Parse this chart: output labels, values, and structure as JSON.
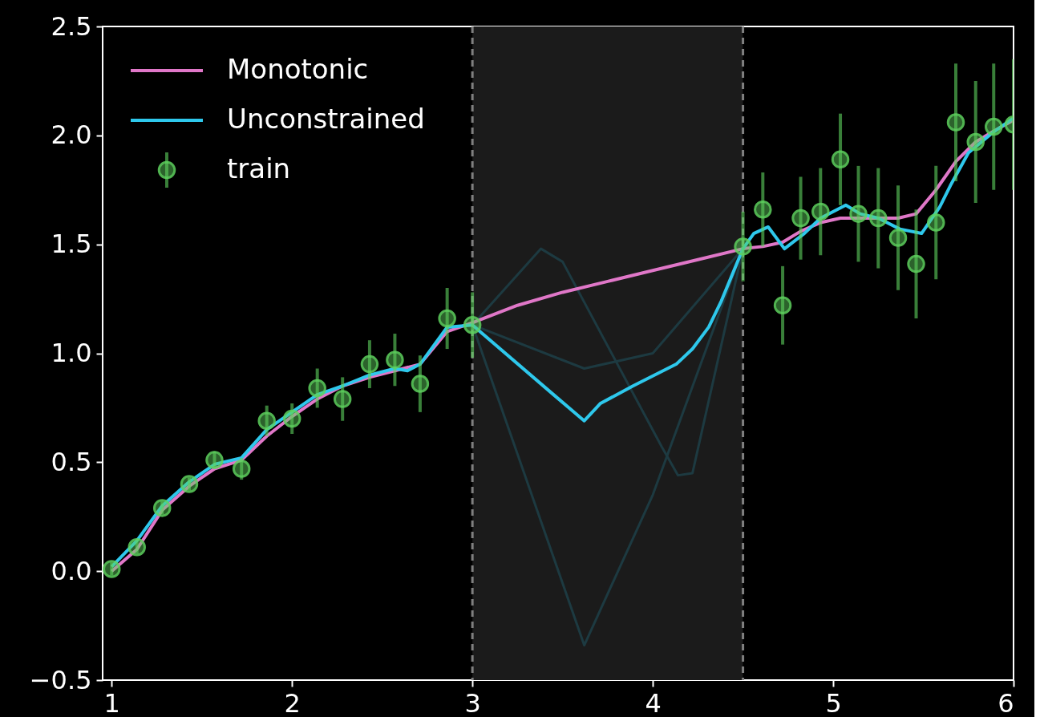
{
  "chart_data": {
    "type": "line",
    "xlim": [
      0.95,
      6.0
    ],
    "ylim": [
      -0.5,
      2.5
    ],
    "xticks": [
      1,
      2,
      3,
      4,
      5,
      6
    ],
    "yticks": [
      {
        "value": -0.5,
        "label": "−0.5"
      },
      {
        "value": 0,
        "label": "0.0"
      },
      {
        "value": 0.5,
        "label": "0.5"
      },
      {
        "value": 1,
        "label": "1.0"
      },
      {
        "value": 1.5,
        "label": "1.5"
      },
      {
        "value": 2,
        "label": "2.0"
      },
      {
        "value": 2.5,
        "label": "2.5"
      }
    ],
    "grid": false,
    "legend": "top left",
    "line_style": "solid",
    "bands": [
      {
        "axis": "x",
        "from": 3,
        "to": 4.5,
        "color": "#1b1b1b"
      }
    ],
    "ref_lines": [
      {
        "axis": "x",
        "value": 3,
        "color": "#808080",
        "line_style": "dashed"
      },
      {
        "axis": "x",
        "value": 4.5,
        "color": "#808080",
        "line_style": "dashed"
      }
    ],
    "series": [
      {
        "type": "line",
        "color": "#1d3a41",
        "x": [
          3.0,
          3.62,
          4.0,
          4.5
        ],
        "values": [
          1.13,
          -0.34,
          0.35,
          1.48
        ]
      },
      {
        "type": "line",
        "color": "#1d3a41",
        "x": [
          3.0,
          3.38,
          3.5,
          4.05,
          4.14,
          4.22,
          4.5
        ],
        "values": [
          1.13,
          1.48,
          1.42,
          0.57,
          0.44,
          0.45,
          1.48
        ]
      },
      {
        "type": "line",
        "color": "#1d3a41",
        "x": [
          3.0,
          3.62,
          4.0,
          4.5
        ],
        "values": [
          1.13,
          0.93,
          1.0,
          1.48
        ]
      },
      {
        "name": "Monotonic",
        "type": "line",
        "color": "#e077c8",
        "x": [
          1.0,
          1.14,
          1.28,
          1.43,
          1.57,
          1.72,
          1.86,
          2.0,
          2.14,
          2.28,
          2.43,
          2.57,
          2.71,
          2.86,
          3.0,
          3.25,
          3.5,
          3.75,
          4.0,
          4.25,
          4.5,
          4.61,
          4.72,
          4.82,
          4.93,
          5.04,
          5.14,
          5.25,
          5.36,
          5.46,
          5.57,
          5.68,
          5.79,
          5.89,
          6.0
        ],
        "values": [
          0.0,
          0.1,
          0.28,
          0.39,
          0.47,
          0.51,
          0.62,
          0.71,
          0.79,
          0.85,
          0.89,
          0.92,
          0.95,
          1.1,
          1.14,
          1.22,
          1.28,
          1.33,
          1.38,
          1.43,
          1.48,
          1.49,
          1.51,
          1.56,
          1.6,
          1.62,
          1.62,
          1.62,
          1.62,
          1.64,
          1.75,
          1.88,
          1.97,
          2.02,
          2.07
        ]
      },
      {
        "name": "Unconstrained",
        "type": "line",
        "color": "#2ec8ec",
        "x": [
          1.0,
          1.14,
          1.28,
          1.43,
          1.57,
          1.72,
          1.86,
          2.0,
          2.14,
          2.28,
          2.43,
          2.57,
          2.64,
          2.71,
          2.86,
          3.0,
          3.45,
          3.62,
          3.71,
          3.89,
          4.13,
          4.22,
          4.31,
          4.38,
          4.5,
          4.56,
          4.64,
          4.73,
          4.84,
          4.93,
          5.07,
          5.15,
          5.25,
          5.37,
          5.49,
          5.59,
          5.65,
          5.75,
          5.88,
          6.0
        ],
        "values": [
          0.02,
          0.14,
          0.3,
          0.41,
          0.49,
          0.52,
          0.65,
          0.73,
          0.81,
          0.85,
          0.9,
          0.93,
          0.92,
          0.95,
          1.12,
          1.13,
          0.81,
          0.69,
          0.77,
          0.85,
          0.95,
          1.02,
          1.12,
          1.24,
          1.48,
          1.55,
          1.58,
          1.48,
          1.55,
          1.62,
          1.68,
          1.64,
          1.62,
          1.57,
          1.55,
          1.67,
          1.77,
          1.92,
          2.01,
          2.08
        ]
      },
      {
        "name": "train",
        "type": "scatter",
        "marker": "circle",
        "color": "#5fd35f",
        "x": [
          1.0,
          1.14,
          1.28,
          1.43,
          1.57,
          1.72,
          1.86,
          2.0,
          2.14,
          2.28,
          2.43,
          2.57,
          2.71,
          2.86,
          3.0,
          4.5,
          4.61,
          4.72,
          4.82,
          4.93,
          5.04,
          5.14,
          5.25,
          5.36,
          5.46,
          5.57,
          5.68,
          5.79,
          5.89,
          6.0
        ],
        "values": [
          0.01,
          0.11,
          0.29,
          0.4,
          0.51,
          0.47,
          0.69,
          0.7,
          0.84,
          0.79,
          0.95,
          0.97,
          0.86,
          1.16,
          1.13,
          1.49,
          1.66,
          1.22,
          1.62,
          1.65,
          1.89,
          1.64,
          1.62,
          1.53,
          1.41,
          1.6,
          2.06,
          1.97,
          2.04,
          2.05
        ],
        "errors": [
          0.03,
          0.03,
          0.03,
          0.03,
          0.04,
          0.05,
          0.07,
          0.07,
          0.09,
          0.1,
          0.11,
          0.12,
          0.13,
          0.14,
          0.15,
          0.16,
          0.17,
          0.18,
          0.19,
          0.2,
          0.21,
          0.22,
          0.23,
          0.24,
          0.25,
          0.26,
          0.27,
          0.28,
          0.29,
          0.3
        ]
      }
    ]
  }
}
